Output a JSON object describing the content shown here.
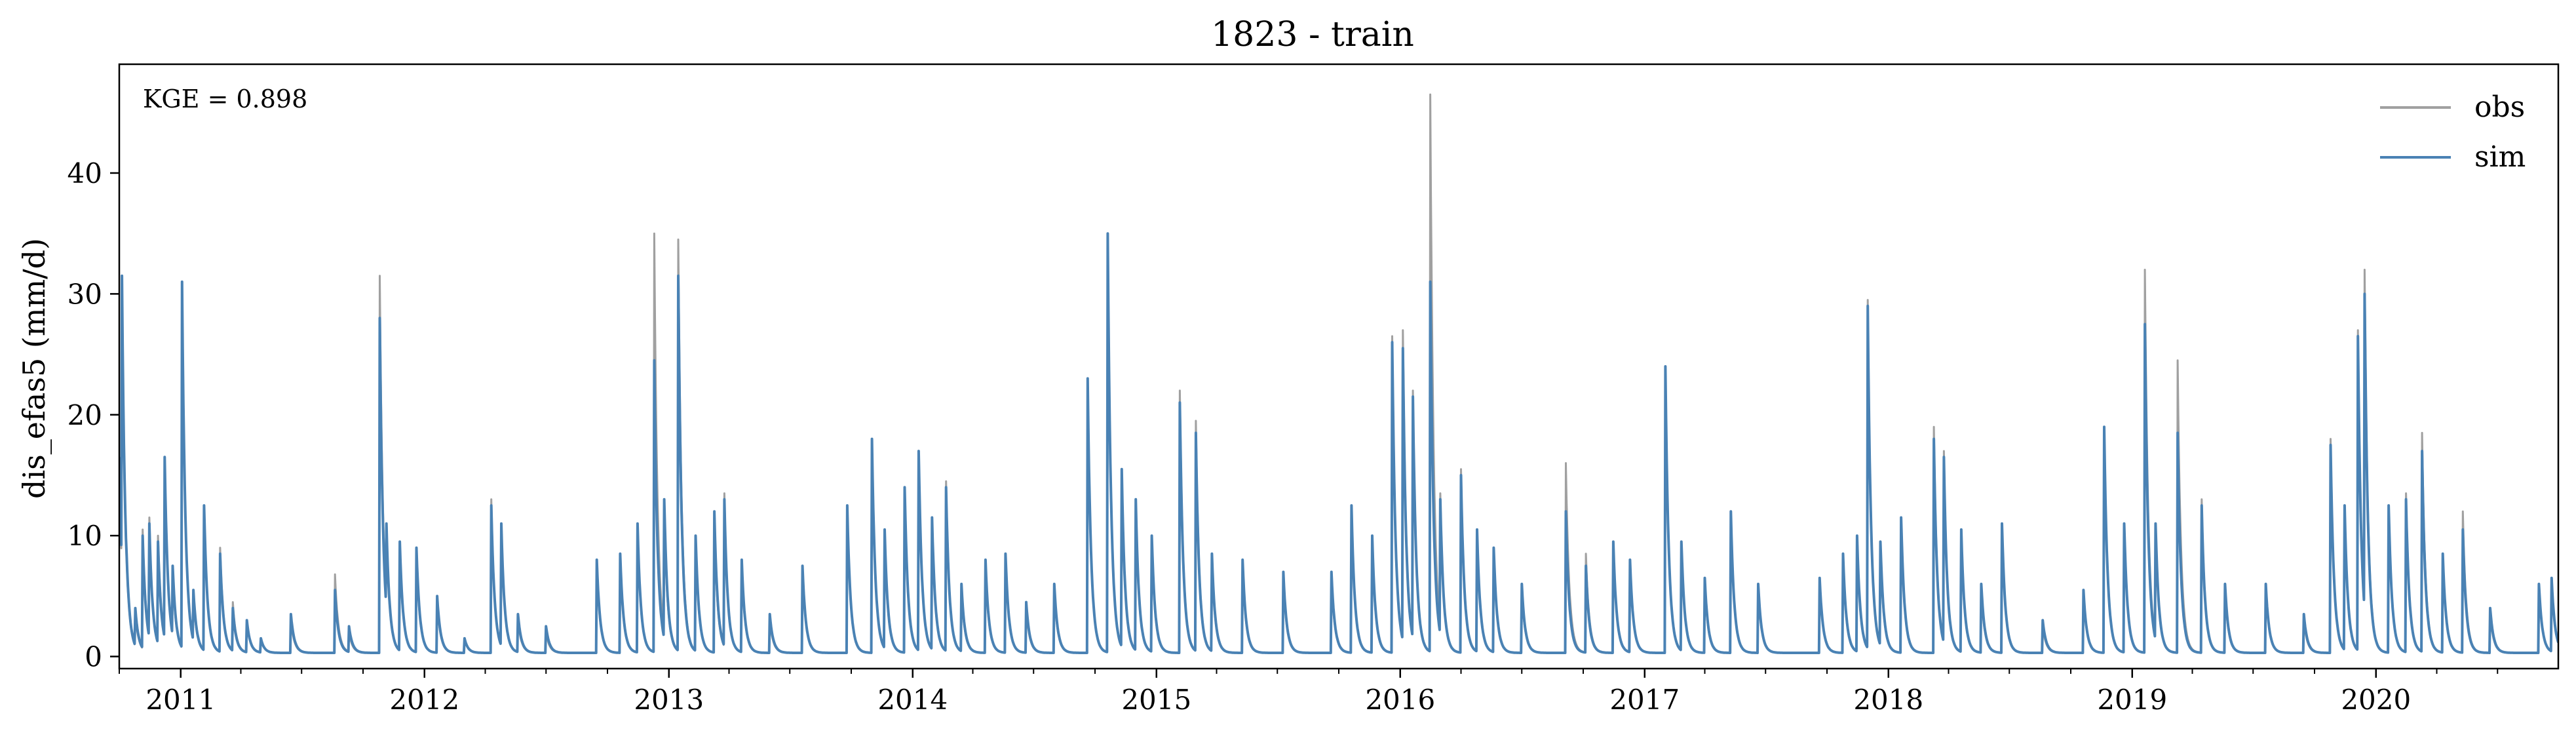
{
  "chart_data": {
    "type": "line",
    "title": "1823 - train",
    "xlabel": "",
    "ylabel": "dis_efas5 (mm/d)",
    "annotation": "KGE = 0.898",
    "x_ticks": [
      "2011",
      "2012",
      "2013",
      "2014",
      "2015",
      "2016",
      "2017",
      "2018",
      "2019",
      "2020"
    ],
    "y_ticks": [
      0,
      10,
      20,
      30,
      40
    ],
    "xlim": [
      "2010-10-01",
      "2020-09-30"
    ],
    "ylim": [
      -1,
      49
    ],
    "grid": false,
    "legend_position": "top-right",
    "colors": {
      "obs": "#a0a0a0",
      "sim": "#4a82b4"
    },
    "series": [
      {
        "name": "obs",
        "points": [
          [
            "2010-10-01",
            16.0
          ],
          [
            "2010-10-05",
            30.5
          ],
          [
            "2010-10-12",
            8.0
          ],
          [
            "2010-10-25",
            3.5
          ],
          [
            "2010-11-05",
            10.5
          ],
          [
            "2010-11-15",
            11.5
          ],
          [
            "2010-11-28",
            10.0
          ],
          [
            "2010-12-08",
            16.0
          ],
          [
            "2010-12-20",
            7.0
          ],
          [
            "2011-01-03",
            31.0
          ],
          [
            "2011-01-20",
            5.0
          ],
          [
            "2011-02-05",
            12.5
          ],
          [
            "2011-03-01",
            9.0
          ],
          [
            "2011-03-20",
            4.5
          ],
          [
            "2011-04-10",
            3.0
          ],
          [
            "2011-05-01",
            1.5
          ],
          [
            "2011-06-15",
            3.0
          ],
          [
            "2011-08-20",
            6.8
          ],
          [
            "2011-09-10",
            2.0
          ],
          [
            "2011-10-26",
            31.5
          ],
          [
            "2011-11-05",
            10.5
          ],
          [
            "2011-11-25",
            9.0
          ],
          [
            "2011-12-20",
            8.5
          ],
          [
            "2012-01-20",
            4.5
          ],
          [
            "2012-03-01",
            1.5
          ],
          [
            "2012-04-10",
            13.0
          ],
          [
            "2012-04-25",
            11.0
          ],
          [
            "2012-05-20",
            3.0
          ],
          [
            "2012-07-01",
            2.0
          ],
          [
            "2012-09-15",
            7.5
          ],
          [
            "2012-10-20",
            8.0
          ],
          [
            "2012-11-15",
            10.5
          ],
          [
            "2012-12-10",
            35.0
          ],
          [
            "2012-12-25",
            12.0
          ],
          [
            "2013-01-15",
            34.5
          ],
          [
            "2013-02-10",
            9.5
          ],
          [
            "2013-03-10",
            11.0
          ],
          [
            "2013-03-25",
            13.5
          ],
          [
            "2013-04-20",
            7.5
          ],
          [
            "2013-06-01",
            3.0
          ],
          [
            "2013-07-20",
            7.5
          ],
          [
            "2013-09-25",
            12.0
          ],
          [
            "2013-11-01",
            18.0
          ],
          [
            "2013-11-20",
            10.0
          ],
          [
            "2013-12-20",
            13.5
          ],
          [
            "2014-01-10",
            16.5
          ],
          [
            "2014-01-30",
            11.0
          ],
          [
            "2014-02-20",
            14.5
          ],
          [
            "2014-03-15",
            5.5
          ],
          [
            "2014-04-20",
            7.5
          ],
          [
            "2014-05-20",
            8.5
          ],
          [
            "2014-06-20",
            4.0
          ],
          [
            "2014-08-01",
            5.5
          ],
          [
            "2014-09-20",
            22.5
          ],
          [
            "2014-10-20",
            35.0
          ],
          [
            "2014-11-10",
            15.0
          ],
          [
            "2014-12-01",
            12.5
          ],
          [
            "2014-12-25",
            9.5
          ],
          [
            "2015-02-05",
            22.0
          ],
          [
            "2015-03-01",
            19.5
          ],
          [
            "2015-03-25",
            8.0
          ],
          [
            "2015-05-10",
            7.5
          ],
          [
            "2015-07-10",
            6.5
          ],
          [
            "2015-09-20",
            6.5
          ],
          [
            "2015-10-20",
            12.5
          ],
          [
            "2015-11-20",
            9.5
          ],
          [
            "2015-12-20",
            26.5
          ],
          [
            "2016-01-05",
            27.0
          ],
          [
            "2016-01-20",
            22.0
          ],
          [
            "2016-02-15",
            46.5
          ],
          [
            "2016-03-01",
            13.5
          ],
          [
            "2016-04-01",
            15.5
          ],
          [
            "2016-04-25",
            10.5
          ],
          [
            "2016-05-20",
            9.0
          ],
          [
            "2016-07-01",
            5.5
          ],
          [
            "2016-09-05",
            16.0
          ],
          [
            "2016-10-05",
            8.5
          ],
          [
            "2016-11-15",
            9.5
          ],
          [
            "2016-12-10",
            8.0
          ],
          [
            "2017-02-01",
            24.0
          ],
          [
            "2017-02-25",
            9.5
          ],
          [
            "2017-04-01",
            6.0
          ],
          [
            "2017-05-10",
            12.0
          ],
          [
            "2017-06-20",
            5.5
          ],
          [
            "2017-09-20",
            6.5
          ],
          [
            "2017-10-25",
            8.0
          ],
          [
            "2017-11-15",
            9.5
          ],
          [
            "2017-12-01",
            29.5
          ],
          [
            "2017-12-20",
            9.0
          ],
          [
            "2018-01-20",
            11.0
          ],
          [
            "2018-03-10",
            19.0
          ],
          [
            "2018-03-25",
            17.0
          ],
          [
            "2018-04-20",
            10.0
          ],
          [
            "2018-05-20",
            5.5
          ],
          [
            "2018-06-20",
            11.0
          ],
          [
            "2018-08-20",
            2.5
          ],
          [
            "2018-10-20",
            5.5
          ],
          [
            "2018-11-20",
            19.0
          ],
          [
            "2018-12-20",
            11.0
          ],
          [
            "2019-01-20",
            32.0
          ],
          [
            "2019-02-05",
            10.5
          ],
          [
            "2019-03-10",
            24.5
          ],
          [
            "2019-04-15",
            13.0
          ],
          [
            "2019-05-20",
            5.5
          ],
          [
            "2019-07-20",
            6.0
          ],
          [
            "2019-09-15",
            3.0
          ],
          [
            "2019-10-25",
            18.0
          ],
          [
            "2019-11-15",
            12.5
          ],
          [
            "2019-12-05",
            27.0
          ],
          [
            "2019-12-15",
            32.0
          ],
          [
            "2020-01-20",
            12.5
          ],
          [
            "2020-02-15",
            13.5
          ],
          [
            "2020-03-10",
            18.5
          ],
          [
            "2020-04-10",
            8.5
          ],
          [
            "2020-05-10",
            12.0
          ],
          [
            "2020-06-20",
            3.5
          ],
          [
            "2020-09-01",
            6.0
          ],
          [
            "2020-09-20",
            6.5
          ]
        ]
      },
      {
        "name": "sim",
        "points": [
          [
            "2010-10-01",
            16.5
          ],
          [
            "2010-10-05",
            31.5
          ],
          [
            "2010-10-12",
            8.5
          ],
          [
            "2010-10-25",
            4.0
          ],
          [
            "2010-11-05",
            10.0
          ],
          [
            "2010-11-15",
            11.0
          ],
          [
            "2010-11-28",
            9.5
          ],
          [
            "2010-12-08",
            16.5
          ],
          [
            "2010-12-20",
            7.5
          ],
          [
            "2011-01-03",
            31.0
          ],
          [
            "2011-01-20",
            5.5
          ],
          [
            "2011-02-05",
            12.5
          ],
          [
            "2011-03-01",
            8.5
          ],
          [
            "2011-03-20",
            4.0
          ],
          [
            "2011-04-10",
            3.0
          ],
          [
            "2011-05-01",
            1.5
          ],
          [
            "2011-06-15",
            3.5
          ],
          [
            "2011-08-20",
            5.5
          ],
          [
            "2011-09-10",
            2.5
          ],
          [
            "2011-10-26",
            28.0
          ],
          [
            "2011-11-05",
            11.0
          ],
          [
            "2011-11-25",
            9.5
          ],
          [
            "2011-12-20",
            9.0
          ],
          [
            "2012-01-20",
            5.0
          ],
          [
            "2012-03-01",
            1.5
          ],
          [
            "2012-04-10",
            12.5
          ],
          [
            "2012-04-25",
            11.0
          ],
          [
            "2012-05-20",
            3.5
          ],
          [
            "2012-07-01",
            2.5
          ],
          [
            "2012-09-15",
            8.0
          ],
          [
            "2012-10-20",
            8.5
          ],
          [
            "2012-11-15",
            11.0
          ],
          [
            "2012-12-10",
            24.5
          ],
          [
            "2012-12-25",
            13.0
          ],
          [
            "2013-01-15",
            31.5
          ],
          [
            "2013-02-10",
            10.0
          ],
          [
            "2013-03-10",
            12.0
          ],
          [
            "2013-03-25",
            13.0
          ],
          [
            "2013-04-20",
            8.0
          ],
          [
            "2013-06-01",
            3.5
          ],
          [
            "2013-07-20",
            7.5
          ],
          [
            "2013-09-25",
            12.5
          ],
          [
            "2013-11-01",
            18.0
          ],
          [
            "2013-11-20",
            10.5
          ],
          [
            "2013-12-20",
            14.0
          ],
          [
            "2014-01-10",
            17.0
          ],
          [
            "2014-01-30",
            11.5
          ],
          [
            "2014-02-20",
            14.0
          ],
          [
            "2014-03-15",
            6.0
          ],
          [
            "2014-04-20",
            8.0
          ],
          [
            "2014-05-20",
            8.5
          ],
          [
            "2014-06-20",
            4.5
          ],
          [
            "2014-08-01",
            6.0
          ],
          [
            "2014-09-20",
            23.0
          ],
          [
            "2014-10-20",
            35.0
          ],
          [
            "2014-11-10",
            15.5
          ],
          [
            "2014-12-01",
            13.0
          ],
          [
            "2014-12-25",
            10.0
          ],
          [
            "2015-02-05",
            21.0
          ],
          [
            "2015-03-01",
            18.5
          ],
          [
            "2015-03-25",
            8.5
          ],
          [
            "2015-05-10",
            8.0
          ],
          [
            "2015-07-10",
            7.0
          ],
          [
            "2015-09-20",
            7.0
          ],
          [
            "2015-10-20",
            12.5
          ],
          [
            "2015-11-20",
            10.0
          ],
          [
            "2015-12-20",
            26.0
          ],
          [
            "2016-01-05",
            25.5
          ],
          [
            "2016-01-20",
            21.5
          ],
          [
            "2016-02-15",
            31.0
          ],
          [
            "2016-03-01",
            13.0
          ],
          [
            "2016-04-01",
            15.0
          ],
          [
            "2016-04-25",
            10.5
          ],
          [
            "2016-05-20",
            9.0
          ],
          [
            "2016-07-01",
            6.0
          ],
          [
            "2016-09-05",
            12.0
          ],
          [
            "2016-10-05",
            7.5
          ],
          [
            "2016-11-15",
            9.5
          ],
          [
            "2016-12-10",
            8.0
          ],
          [
            "2017-02-01",
            24.0
          ],
          [
            "2017-02-25",
            9.5
          ],
          [
            "2017-04-01",
            6.5
          ],
          [
            "2017-05-10",
            12.0
          ],
          [
            "2017-06-20",
            6.0
          ],
          [
            "2017-09-20",
            6.5
          ],
          [
            "2017-10-25",
            8.5
          ],
          [
            "2017-11-15",
            10.0
          ],
          [
            "2017-12-01",
            29.0
          ],
          [
            "2017-12-20",
            9.5
          ],
          [
            "2018-01-20",
            11.5
          ],
          [
            "2018-03-10",
            18.0
          ],
          [
            "2018-03-25",
            16.5
          ],
          [
            "2018-04-20",
            10.5
          ],
          [
            "2018-05-20",
            6.0
          ],
          [
            "2018-06-20",
            11.0
          ],
          [
            "2018-08-20",
            3.0
          ],
          [
            "2018-10-20",
            5.5
          ],
          [
            "2018-11-20",
            19.0
          ],
          [
            "2018-12-20",
            11.0
          ],
          [
            "2019-01-20",
            27.5
          ],
          [
            "2019-02-05",
            11.0
          ],
          [
            "2019-03-10",
            18.5
          ],
          [
            "2019-04-15",
            12.5
          ],
          [
            "2019-05-20",
            6.0
          ],
          [
            "2019-07-20",
            6.0
          ],
          [
            "2019-09-15",
            3.5
          ],
          [
            "2019-10-25",
            17.5
          ],
          [
            "2019-11-15",
            12.5
          ],
          [
            "2019-12-05",
            26.5
          ],
          [
            "2019-12-15",
            30.0
          ],
          [
            "2020-01-20",
            12.5
          ],
          [
            "2020-02-15",
            13.0
          ],
          [
            "2020-03-10",
            17.0
          ],
          [
            "2020-04-10",
            8.5
          ],
          [
            "2020-05-10",
            10.5
          ],
          [
            "2020-06-20",
            4.0
          ],
          [
            "2020-09-01",
            6.0
          ],
          [
            "2020-09-20",
            6.5
          ]
        ]
      }
    ]
  }
}
